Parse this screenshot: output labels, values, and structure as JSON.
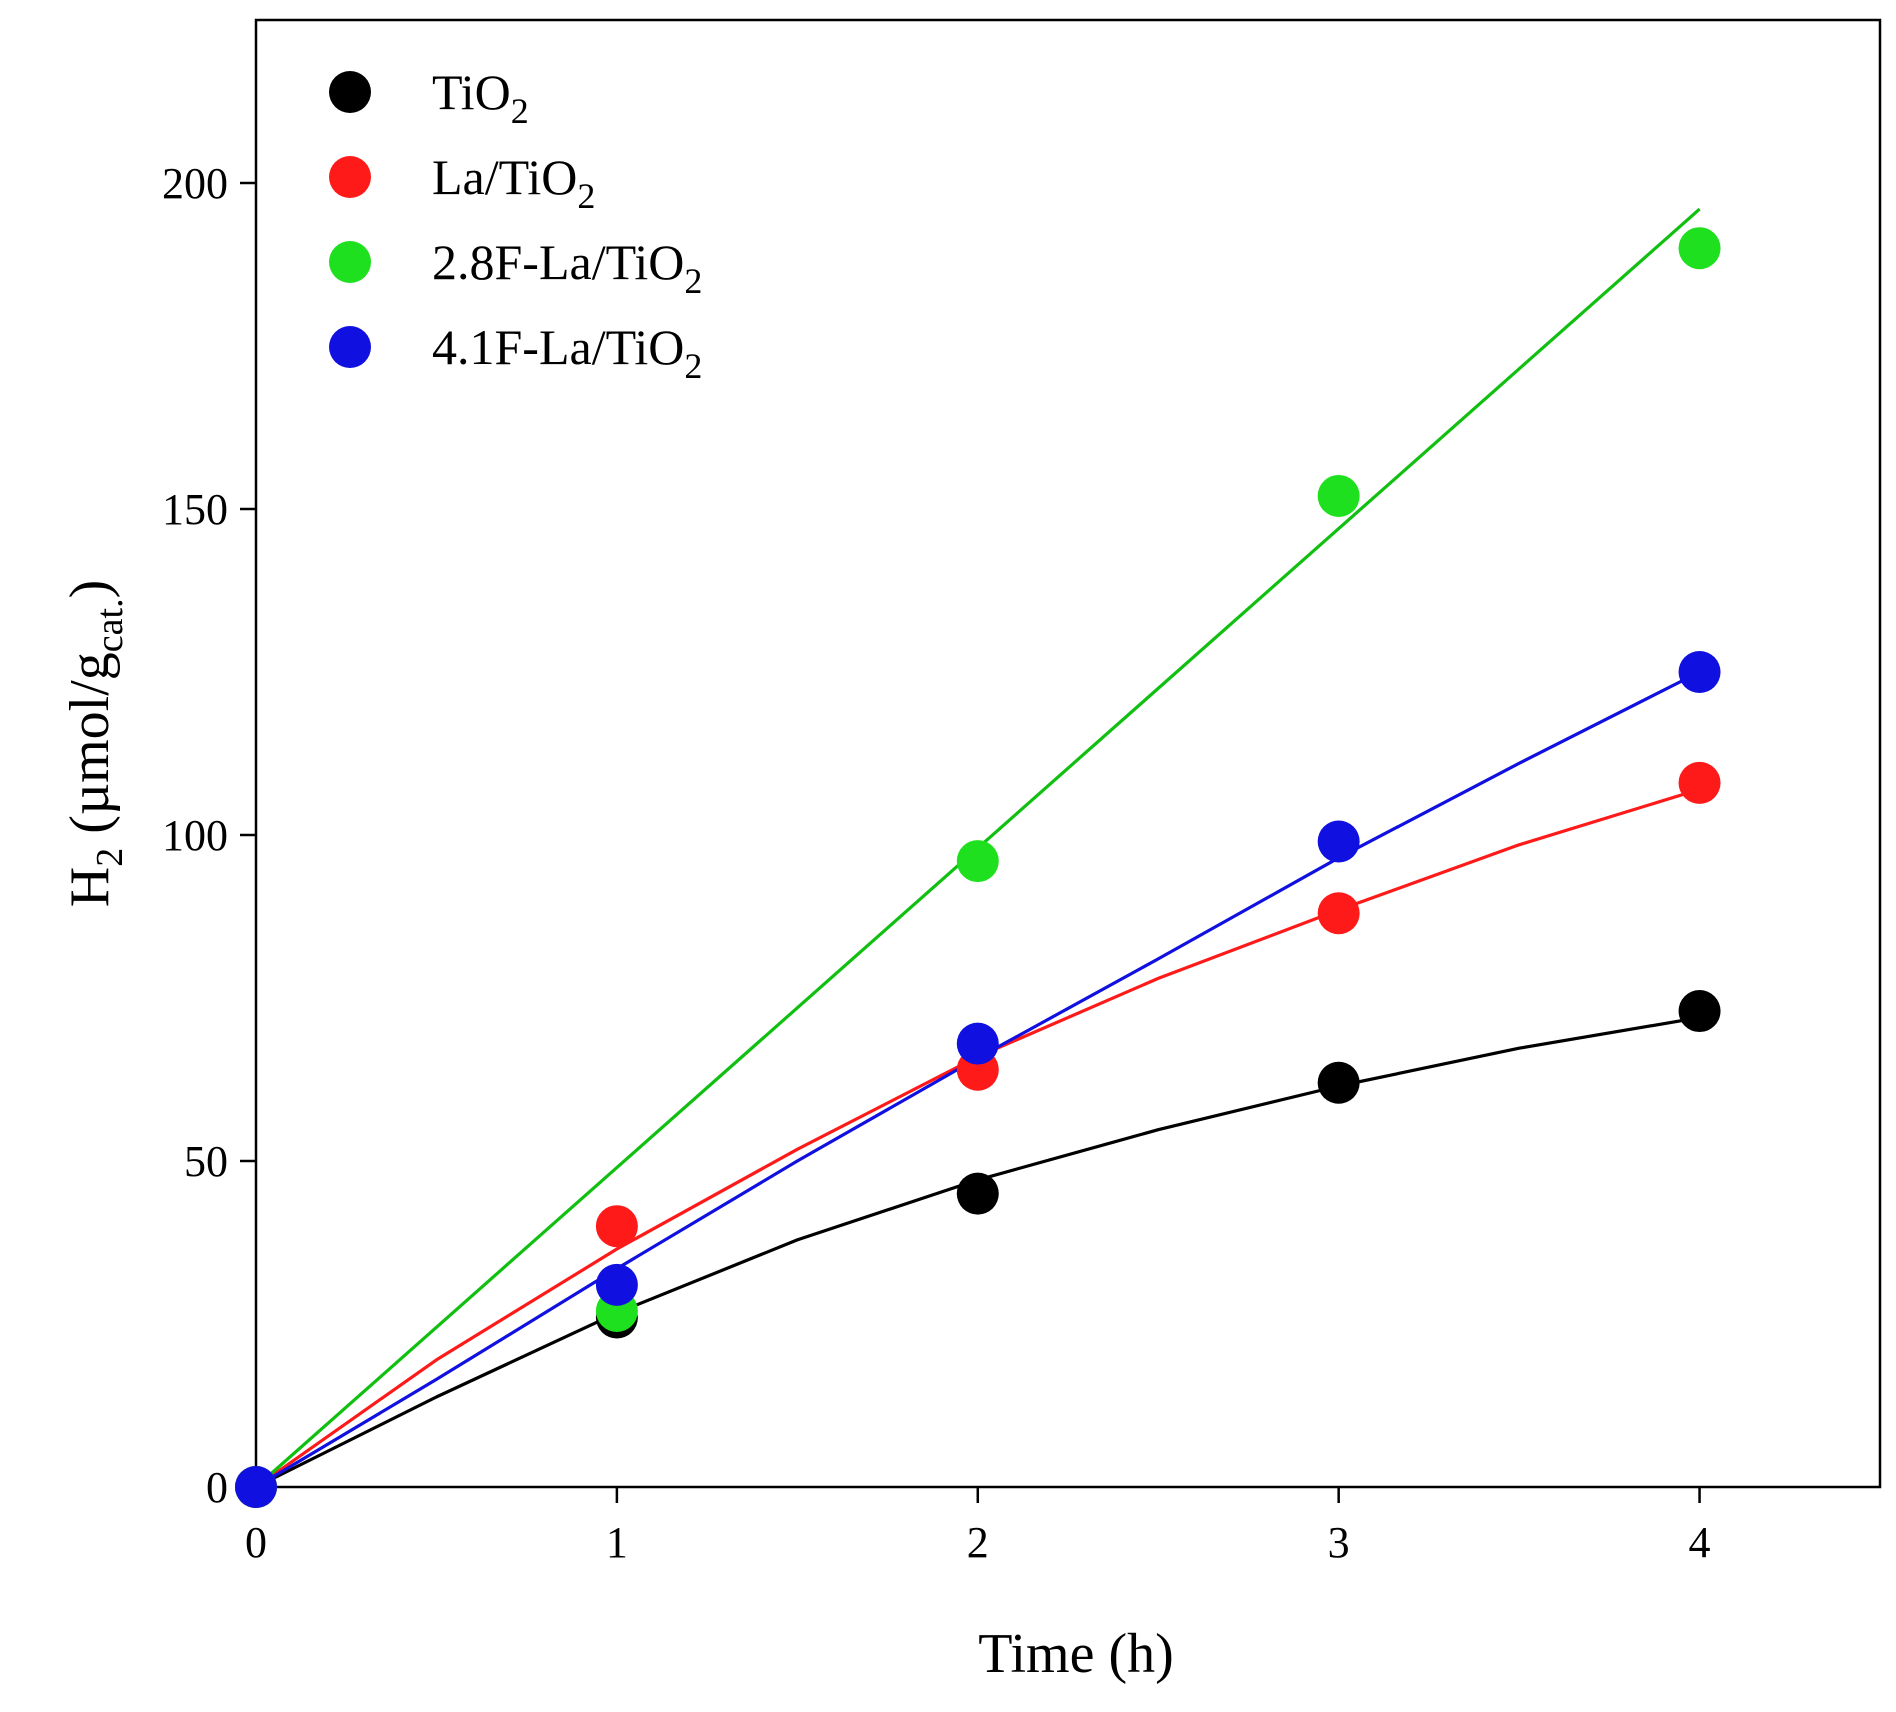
{
  "chart_data": {
    "type": "scatter",
    "title": "",
    "xlabel": "Time (h)",
    "ylabel": {
      "parts": [
        {
          "text": "H",
          "sub": false
        },
        {
          "text": "2",
          "sub": true
        },
        {
          "text": " (µmol/g",
          "sub": false
        },
        {
          "text": "cat.",
          "sub": true
        },
        {
          "text": ")",
          "sub": false
        }
      ]
    },
    "xlim": [
      0,
      4.5
    ],
    "ylim": [
      0,
      225
    ],
    "xticks": [
      0,
      1,
      2,
      3,
      4
    ],
    "yticks": [
      0,
      50,
      100,
      150,
      200
    ],
    "grid": false,
    "legend_position": "top-left",
    "series": [
      {
        "name": "TiO2",
        "label_parts": [
          {
            "text": "TiO",
            "sub": false
          },
          {
            "text": "2",
            "sub": true
          }
        ],
        "color": "#000000",
        "points": [
          [
            0,
            0
          ],
          [
            1,
            26
          ],
          [
            2,
            45
          ],
          [
            3,
            62
          ],
          [
            4,
            73
          ]
        ],
        "fit": [
          [
            0,
            0
          ],
          [
            0.5,
            13.8
          ],
          [
            1,
            26.7
          ],
          [
            1.5,
            37.9
          ],
          [
            2,
            47.1
          ],
          [
            2.5,
            54.8
          ],
          [
            3,
            61.5
          ],
          [
            3.5,
            67.3
          ],
          [
            4,
            72
          ]
        ]
      },
      {
        "name": "La/TiO2",
        "label_parts": [
          {
            "text": "La/TiO",
            "sub": false
          },
          {
            "text": "2",
            "sub": true
          }
        ],
        "color": "#ff1a1a",
        "points": [
          [
            0,
            0
          ],
          [
            1,
            40
          ],
          [
            2,
            64
          ],
          [
            3,
            88
          ],
          [
            4,
            108
          ]
        ],
        "fit": [
          [
            0,
            0
          ],
          [
            0.5,
            19.5
          ],
          [
            1,
            36.5
          ],
          [
            1.5,
            51.8
          ],
          [
            2,
            66
          ],
          [
            2.5,
            78
          ],
          [
            3,
            88.5
          ],
          [
            3.5,
            98.5
          ],
          [
            4,
            107
          ]
        ]
      },
      {
        "name": "2.8F-La/TiO2",
        "label_parts": [
          {
            "text": "2.8F-La/TiO",
            "sub": false
          },
          {
            "text": "2",
            "sub": true
          }
        ],
        "color": "#1fe01f",
        "line_color": "#10c010",
        "points": [
          [
            0,
            0
          ],
          [
            1,
            27
          ],
          [
            2,
            96
          ],
          [
            3,
            152
          ],
          [
            4,
            190
          ]
        ],
        "fit": [
          [
            0,
            0
          ],
          [
            4,
            196
          ]
        ]
      },
      {
        "name": "4.1F-La/TiO2",
        "label_parts": [
          {
            "text": "4.1F-La/TiO",
            "sub": false
          },
          {
            "text": "2",
            "sub": true
          }
        ],
        "color": "#1010e0",
        "points": [
          [
            0,
            0
          ],
          [
            1,
            31
          ],
          [
            2,
            68
          ],
          [
            3,
            99
          ],
          [
            4,
            125
          ]
        ],
        "fit": [
          [
            0,
            0
          ],
          [
            0.5,
            16.5
          ],
          [
            1,
            33.5
          ],
          [
            1.5,
            50
          ],
          [
            2,
            65.8
          ],
          [
            2.5,
            81
          ],
          [
            3,
            96.5
          ],
          [
            3.5,
            111
          ],
          [
            4,
            125
          ]
        ]
      }
    ]
  }
}
